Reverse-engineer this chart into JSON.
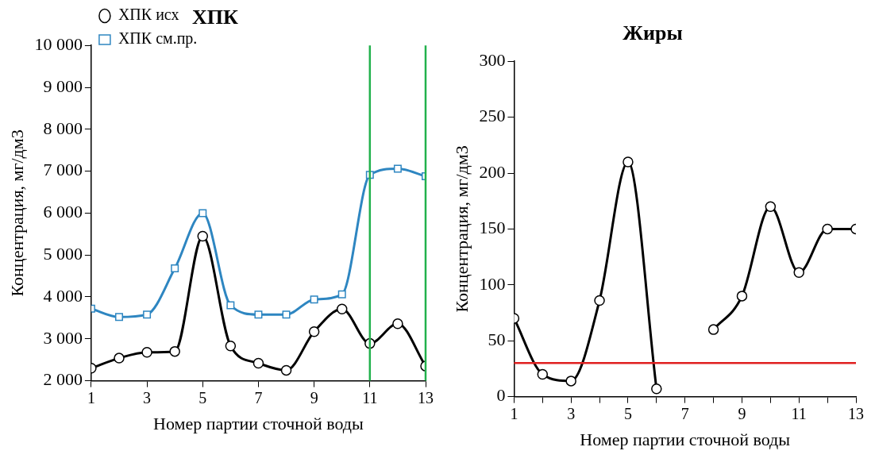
{
  "chart_data": [
    {
      "type": "line",
      "title": "ХПК",
      "xlabel": "Номер партии сточной воды",
      "ylabel": "Концентрация, мг/дм3",
      "x": [
        1,
        2,
        3,
        4,
        5,
        6,
        7,
        8,
        9,
        10,
        11,
        12,
        13
      ],
      "series": [
        {
          "name": "ХПК исх",
          "color": "#000000",
          "marker": "circle",
          "values": [
            2300,
            2540,
            2680,
            2700,
            5450,
            2830,
            2420,
            2250,
            3170,
            3710,
            2890,
            3360,
            2350
          ]
        },
        {
          "name": "ХПК см.пр.",
          "color": "#2e86c1",
          "marker": "square",
          "values": [
            3720,
            3520,
            3580,
            4680,
            6000,
            3800,
            3580,
            3580,
            3940,
            4060,
            6910,
            7060,
            6880
          ]
        }
      ],
      "xlim": [
        1,
        13
      ],
      "xticks": [
        1,
        3,
        5,
        7,
        9,
        11,
        13
      ],
      "ylim": [
        2000,
        10000
      ],
      "yticks": [
        {
          "value": 2000,
          "label": "2 000"
        },
        {
          "value": 3000,
          "label": "3 000"
        },
        {
          "value": 4000,
          "label": "4 000"
        },
        {
          "value": 5000,
          "label": "5 000"
        },
        {
          "value": 6000,
          "label": "6 000"
        },
        {
          "value": 7000,
          "label": "7 000"
        },
        {
          "value": 8000,
          "label": "8 000"
        },
        {
          "value": 9000,
          "label": "9 000"
        },
        {
          "value": 10000,
          "label": "10 000"
        }
      ],
      "ref_lines": [
        {
          "axis": "x",
          "value": 11,
          "color": "#22b14c"
        },
        {
          "axis": "x",
          "value": 13,
          "color": "#22b14c"
        }
      ],
      "grid": false,
      "legend": "top left"
    },
    {
      "type": "line",
      "title": "Жиры",
      "xlabel": "Номер партии сточной воды",
      "ylabel": "Концентрация, мг/дм3",
      "x": [
        1,
        2,
        3,
        4,
        5,
        6,
        7,
        8,
        9,
        10,
        11,
        12,
        13
      ],
      "series": [
        {
          "color": "#000000",
          "marker": "circle",
          "values": [
            70,
            20,
            14,
            86,
            210,
            7,
            null,
            60,
            90,
            170,
            111,
            150,
            150
          ]
        }
      ],
      "xlim": [
        1,
        13
      ],
      "xticks": [
        1,
        {
          "value": 2,
          "label": null
        },
        3,
        {
          "value": 4,
          "label": null
        },
        5,
        {
          "value": 6,
          "label": null
        },
        7,
        {
          "value": 8,
          "label": null
        },
        9,
        {
          "value": 10,
          "label": null
        },
        11,
        {
          "value": 12,
          "label": null
        },
        13
      ],
      "ylim": [
        0,
        300
      ],
      "yticks": [
        0,
        50,
        100,
        150,
        200,
        250,
        300
      ],
      "ref_lines": [
        {
          "axis": "y",
          "value": 30,
          "color": "#e02020"
        }
      ],
      "grid": false,
      "legend": false
    }
  ]
}
